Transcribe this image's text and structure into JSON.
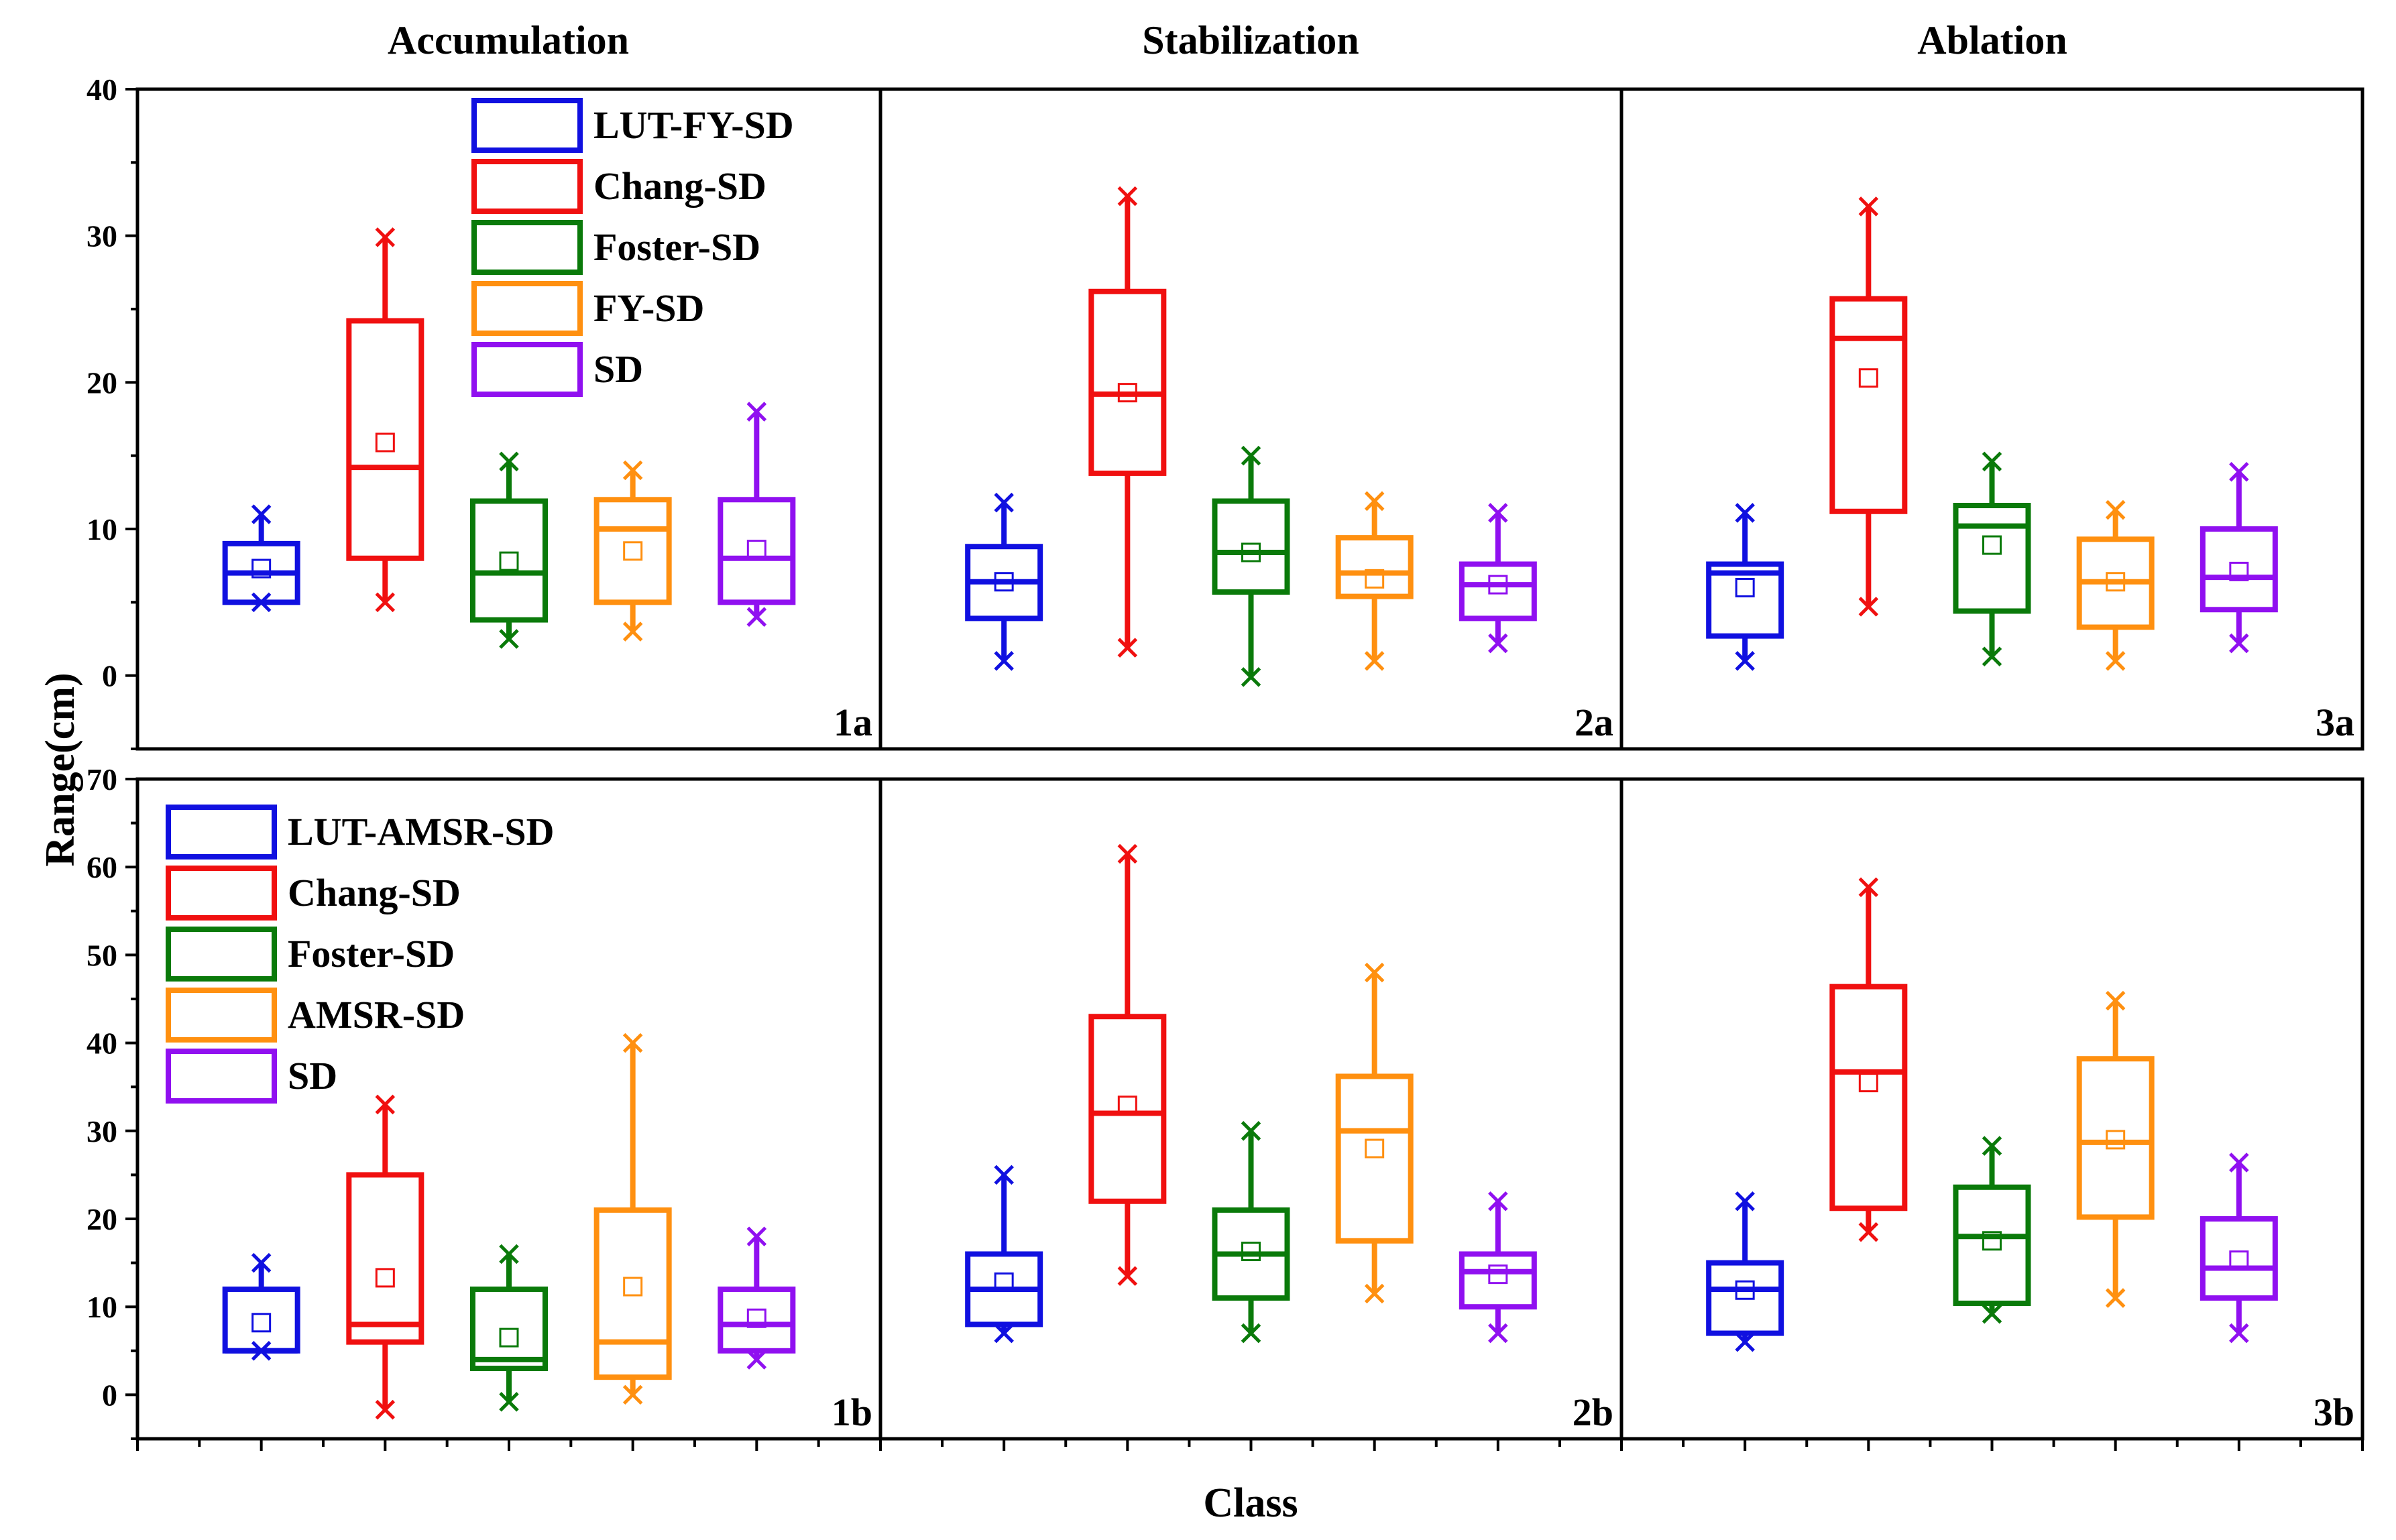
{
  "figure": {
    "column_titles": [
      "Accumulation",
      "Stabilization",
      "Ablation"
    ],
    "ylabel": "Range(cm)",
    "xlabel": "Class",
    "colors": [
      "#1010e0",
      "#f01010",
      "#0a7a0a",
      "#ff9010",
      "#9010f0"
    ]
  },
  "chart_data": [
    {
      "type": "box",
      "panel": "1a",
      "row": 0,
      "col": 0,
      "ylim": [
        -5,
        40
      ],
      "yticks": [
        0,
        10,
        20,
        30,
        40
      ],
      "legend": [
        "LUT-FY-SD",
        "Chang-SD",
        "Foster-SD",
        "FY-SD",
        "SD"
      ],
      "boxes": [
        {
          "series": "LUT-FY-SD",
          "min": 5,
          "q1": 5,
          "median": 7,
          "q3": 9,
          "max": 11,
          "mean": 7.3
        },
        {
          "series": "Chang-SD",
          "min": 5,
          "q1": 8,
          "median": 14.2,
          "q3": 24.2,
          "max": 29.9,
          "mean": 15.9
        },
        {
          "series": "Foster-SD",
          "min": 2.5,
          "q1": 3.8,
          "median": 7,
          "q3": 11.9,
          "max": 14.6,
          "mean": 7.8
        },
        {
          "series": "FY-SD",
          "min": 3,
          "q1": 5,
          "median": 10,
          "q3": 12,
          "max": 14,
          "mean": 8.5
        },
        {
          "series": "SD",
          "min": 4,
          "q1": 5,
          "median": 8,
          "q3": 12,
          "max": 18,
          "mean": 8.6
        }
      ]
    },
    {
      "type": "box",
      "panel": "2a",
      "row": 0,
      "col": 1,
      "ylim": [
        -5,
        40
      ],
      "boxes": [
        {
          "series": "LUT-FY-SD",
          "min": 1,
          "q1": 3.9,
          "median": 6.4,
          "q3": 8.8,
          "max": 11.8,
          "mean": 6.4
        },
        {
          "series": "Chang-SD",
          "min": 1.9,
          "q1": 13.8,
          "median": 19.2,
          "q3": 26.2,
          "max": 32.7,
          "mean": 19.3
        },
        {
          "series": "Foster-SD",
          "min": -0.1,
          "q1": 5.7,
          "median": 8.4,
          "q3": 11.9,
          "max": 15,
          "mean": 8.4
        },
        {
          "series": "FY-SD",
          "min": 1,
          "q1": 5.4,
          "median": 7,
          "q3": 9.4,
          "max": 11.9,
          "mean": 6.6
        },
        {
          "series": "SD",
          "min": 2.2,
          "q1": 3.9,
          "median": 6.2,
          "q3": 7.6,
          "max": 11.1,
          "mean": 6.2
        }
      ]
    },
    {
      "type": "box",
      "panel": "3a",
      "row": 0,
      "col": 2,
      "ylim": [
        -5,
        40
      ],
      "boxes": [
        {
          "series": "LUT-FY-SD",
          "min": 1,
          "q1": 2.7,
          "median": 7,
          "q3": 7.6,
          "max": 11.1,
          "mean": 6
        },
        {
          "series": "Chang-SD",
          "min": 4.7,
          "q1": 11.2,
          "median": 23,
          "q3": 25.7,
          "max": 32,
          "mean": 20.3
        },
        {
          "series": "Foster-SD",
          "min": 1.3,
          "q1": 4.4,
          "median": 10.2,
          "q3": 11.6,
          "max": 14.6,
          "mean": 8.9
        },
        {
          "series": "FY-SD",
          "min": 1,
          "q1": 3.3,
          "median": 6.4,
          "q3": 9.3,
          "max": 11.3,
          "mean": 6.4
        },
        {
          "series": "SD",
          "min": 2.2,
          "q1": 4.5,
          "median": 6.7,
          "q3": 10,
          "max": 13.9,
          "mean": 7.1
        }
      ]
    },
    {
      "type": "box",
      "panel": "1b",
      "row": 1,
      "col": 0,
      "ylim": [
        -5,
        70
      ],
      "yticks": [
        0,
        10,
        20,
        30,
        40,
        50,
        60,
        70
      ],
      "legend": [
        "LUT-AMSR-SD",
        "Chang-SD",
        "Foster-SD",
        "AMSR-SD",
        "SD"
      ],
      "boxes": [
        {
          "series": "LUT-AMSR-SD",
          "min": 5,
          "q1": 5,
          "median": 5,
          "q3": 12,
          "max": 15,
          "mean": 8.2
        },
        {
          "series": "Chang-SD",
          "min": -1.7,
          "q1": 6,
          "median": 8,
          "q3": 25,
          "max": 33,
          "mean": 13.3
        },
        {
          "series": "Foster-SD",
          "min": -0.8,
          "q1": 3,
          "median": 4,
          "q3": 12,
          "max": 16,
          "mean": 6.5
        },
        {
          "series": "AMSR-SD",
          "min": 0,
          "q1": 2,
          "median": 6,
          "q3": 21,
          "max": 40,
          "mean": 12.3
        },
        {
          "series": "SD",
          "min": 4,
          "q1": 5,
          "median": 8,
          "q3": 12,
          "max": 18,
          "mean": 8.7
        }
      ]
    },
    {
      "type": "box",
      "panel": "2b",
      "row": 1,
      "col": 1,
      "ylim": [
        -5,
        70
      ],
      "boxes": [
        {
          "series": "LUT-AMSR-SD",
          "min": 7,
          "q1": 8,
          "median": 12,
          "q3": 16,
          "max": 25,
          "mean": 12.8
        },
        {
          "series": "Chang-SD",
          "min": 13.5,
          "q1": 22,
          "median": 32,
          "q3": 43,
          "max": 61.5,
          "mean": 32.9
        },
        {
          "series": "Foster-SD",
          "min": 7,
          "q1": 11,
          "median": 16,
          "q3": 21,
          "max": 30,
          "mean": 16.3
        },
        {
          "series": "AMSR-SD",
          "min": 11.5,
          "q1": 17.5,
          "median": 30,
          "q3": 36.2,
          "max": 48,
          "mean": 28
        },
        {
          "series": "SD",
          "min": 7,
          "q1": 10,
          "median": 14,
          "q3": 16,
          "max": 22,
          "mean": 13.7
        }
      ]
    },
    {
      "type": "box",
      "panel": "3b",
      "row": 1,
      "col": 2,
      "ylim": [
        -5,
        70
      ],
      "boxes": [
        {
          "series": "LUT-AMSR-SD",
          "min": 6,
          "q1": 7,
          "median": 12,
          "q3": 15,
          "max": 22,
          "mean": 11.9
        },
        {
          "series": "Chang-SD",
          "min": 18.5,
          "q1": 21.2,
          "median": 36.7,
          "q3": 46.4,
          "max": 57.7,
          "mean": 35.5
        },
        {
          "series": "Foster-SD",
          "min": 9.2,
          "q1": 10.4,
          "median": 18,
          "q3": 23.6,
          "max": 28.3,
          "mean": 17.5
        },
        {
          "series": "AMSR-SD",
          "min": 11,
          "q1": 20.2,
          "median": 28.7,
          "q3": 38.2,
          "max": 44.8,
          "mean": 29
        },
        {
          "series": "SD",
          "min": 7,
          "q1": 11,
          "median": 14.4,
          "q3": 20,
          "max": 26.4,
          "mean": 15.3
        }
      ]
    }
  ]
}
